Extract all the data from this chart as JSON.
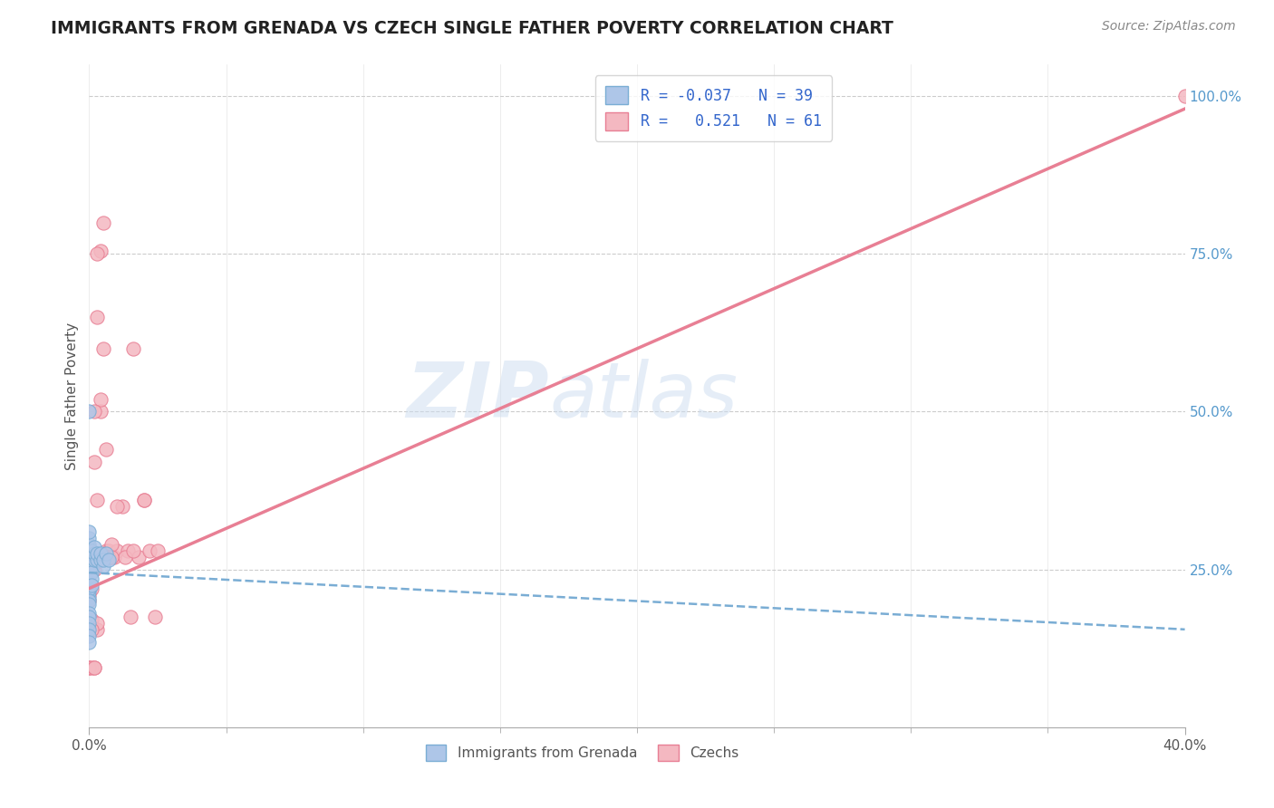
{
  "title": "IMMIGRANTS FROM GRENADA VS CZECH SINGLE FATHER POVERTY CORRELATION CHART",
  "source": "Source: ZipAtlas.com",
  "ylabel": "Single Father Poverty",
  "right_yticks": [
    "100.0%",
    "75.0%",
    "50.0%",
    "25.0%"
  ],
  "right_ytick_vals": [
    1.0,
    0.75,
    0.5,
    0.25
  ],
  "grenada_color": "#aec6e8",
  "grenada_edge": "#7aadd4",
  "czech_color": "#f4b8c1",
  "czech_edge": "#e87f94",
  "trend_grenada_color": "#7aadd4",
  "trend_czech_color": "#e87f94",
  "background_color": "#ffffff",
  "grid_color": "#cccccc",
  "watermark_zip": "ZIP",
  "watermark_atlas": "atlas",
  "xlim": [
    0.0,
    0.4
  ],
  "ylim": [
    0.0,
    1.05
  ],
  "x_minor_ticks": [
    0.05,
    0.1,
    0.15,
    0.2,
    0.25,
    0.3,
    0.35
  ],
  "grenada_x": [
    0.0,
    0.0,
    0.0,
    0.0,
    0.0,
    0.0,
    0.0,
    0.0,
    0.0,
    0.0,
    0.0,
    0.0,
    0.0,
    0.0,
    0.0,
    0.0,
    0.0,
    0.0,
    0.0,
    0.0,
    0.001,
    0.001,
    0.001,
    0.001,
    0.001,
    0.001,
    0.001,
    0.002,
    0.002,
    0.002,
    0.003,
    0.003,
    0.004,
    0.004,
    0.005,
    0.005,
    0.006,
    0.007,
    0.0
  ],
  "grenada_y": [
    0.205,
    0.215,
    0.22,
    0.2,
    0.195,
    0.18,
    0.175,
    0.165,
    0.155,
    0.145,
    0.135,
    0.23,
    0.24,
    0.25,
    0.26,
    0.27,
    0.28,
    0.29,
    0.3,
    0.31,
    0.27,
    0.28,
    0.26,
    0.255,
    0.245,
    0.235,
    0.225,
    0.265,
    0.275,
    0.285,
    0.265,
    0.275,
    0.265,
    0.275,
    0.255,
    0.265,
    0.275,
    0.265,
    0.5
  ],
  "czech_x": [
    0.0,
    0.0,
    0.001,
    0.001,
    0.002,
    0.002,
    0.002,
    0.003,
    0.003,
    0.003,
    0.003,
    0.004,
    0.004,
    0.004,
    0.004,
    0.005,
    0.005,
    0.005,
    0.006,
    0.006,
    0.006,
    0.007,
    0.007,
    0.008,
    0.009,
    0.01,
    0.012,
    0.014,
    0.016,
    0.018,
    0.02,
    0.022,
    0.025,
    0.0,
    0.001,
    0.001,
    0.002,
    0.002,
    0.003,
    0.003,
    0.004,
    0.004,
    0.005,
    0.005,
    0.006,
    0.007,
    0.008,
    0.01,
    0.013,
    0.016,
    0.02,
    0.024,
    0.0,
    0.001,
    0.002,
    0.003,
    0.004,
    0.006,
    0.008,
    0.015,
    0.4
  ],
  "czech_y": [
    0.095,
    0.2,
    0.16,
    0.22,
    0.25,
    0.26,
    0.42,
    0.27,
    0.27,
    0.36,
    0.65,
    0.265,
    0.5,
    0.27,
    0.52,
    0.27,
    0.27,
    0.6,
    0.27,
    0.27,
    0.28,
    0.27,
    0.28,
    0.27,
    0.27,
    0.28,
    0.35,
    0.28,
    0.6,
    0.27,
    0.36,
    0.28,
    0.28,
    0.095,
    0.095,
    0.17,
    0.095,
    0.095,
    0.155,
    0.165,
    0.27,
    0.755,
    0.8,
    0.27,
    0.27,
    0.27,
    0.29,
    0.35,
    0.27,
    0.28,
    0.36,
    0.175,
    0.21,
    0.155,
    0.5,
    0.75,
    0.27,
    0.44,
    0.27,
    0.175,
    1.0
  ],
  "trend_grenada_x0": 0.0,
  "trend_grenada_x1": 0.4,
  "trend_grenada_y0": 0.245,
  "trend_grenada_y1": 0.155,
  "trend_czech_x0": 0.0,
  "trend_czech_x1": 0.4,
  "trend_czech_y0": 0.22,
  "trend_czech_y1": 0.98
}
